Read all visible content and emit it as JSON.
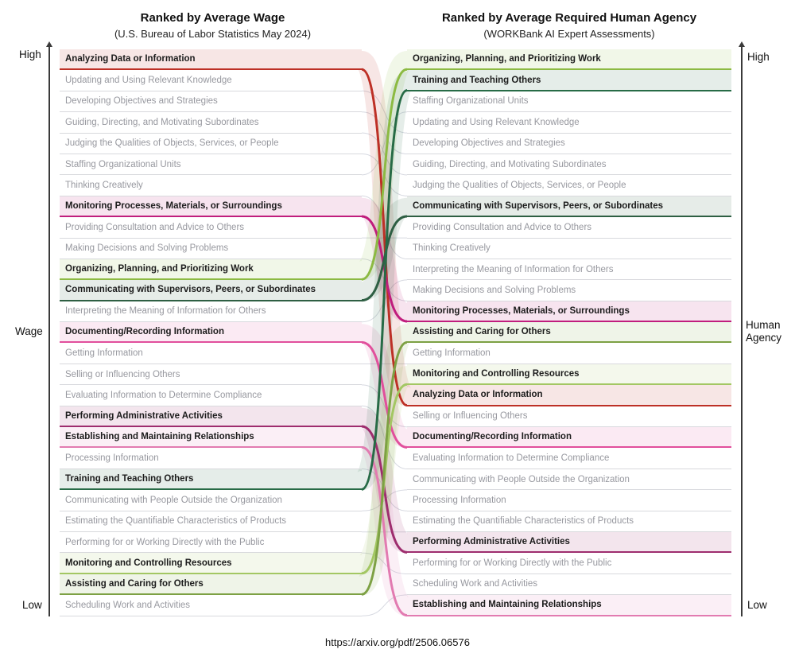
{
  "titles": {
    "left_title": "Ranked by Average Wage",
    "left_subtitle": "(U.S. Bureau of Labor Statistics May 2024)",
    "right_title": "Ranked by Average Required Human Agency",
    "right_subtitle": "(WORKBank AI Expert Assessments)"
  },
  "axes": {
    "left": {
      "top": "High",
      "middle": "Wage",
      "bottom": "Low"
    },
    "right": {
      "top": "High",
      "middle": "Human Agency",
      "bottom": "Low"
    }
  },
  "caption": "https://arxiv.org/pdf/2506.06576",
  "chart_data": {
    "type": "slope-ranking",
    "left_axis": "Wage (High to Low)",
    "right_axis": "Human Agency (High to Low)",
    "left_ranking": [
      "Analyzing Data or Information",
      "Updating and Using Relevant Knowledge",
      "Developing Objectives and Strategies",
      "Guiding, Directing, and Motivating Subordinates",
      "Judging the Qualities of Objects, Services, or People",
      "Staffing Organizational Units",
      "Thinking Creatively",
      "Monitoring Processes, Materials, or Surroundings",
      "Providing Consultation and Advice to Others",
      "Making Decisions and Solving Problems",
      "Organizing, Planning, and Prioritizing Work",
      "Communicating with Supervisors, Peers, or Subordinates",
      "Interpreting the Meaning of Information for Others",
      "Documenting/Recording Information",
      "Getting Information",
      "Selling or Influencing Others",
      "Evaluating Information to Determine Compliance",
      "Performing Administrative Activities",
      "Establishing and Maintaining Relationships",
      "Processing Information",
      "Training and Teaching Others",
      "Communicating with People Outside the Organization",
      "Estimating the Quantifiable Characteristics of Products",
      "Performing for or Working Directly with the Public",
      "Monitoring and Controlling Resources",
      "Assisting and Caring for Others",
      "Scheduling Work and Activities"
    ],
    "right_ranking": [
      "Organizing, Planning, and Prioritizing Work",
      "Training and Teaching Others",
      "Staffing Organizational Units",
      "Updating and Using Relevant Knowledge",
      "Developing Objectives and Strategies",
      "Guiding, Directing, and Motivating Subordinates",
      "Judging the Qualities of Objects, Services, or People",
      "Communicating with Supervisors, Peers, or Subordinates",
      "Providing Consultation and Advice to Others",
      "Thinking Creatively",
      "Interpreting the Meaning of Information for Others",
      "Making Decisions and Solving Problems",
      "Monitoring Processes, Materials, or Surroundings",
      "Assisting and Caring for Others",
      "Getting Information",
      "Monitoring and Controlling Resources",
      "Analyzing Data or Information",
      "Selling or Influencing Others",
      "Documenting/Recording Information",
      "Evaluating Information to Determine Compliance",
      "Communicating with People Outside the Organization",
      "Processing Information",
      "Estimating the Quantifiable Characteristics of Products",
      "Performing Administrative Activities",
      "Performing for or Working Directly with the Public",
      "Scheduling Work and Activities",
      "Establishing and Maintaining Relationships"
    ],
    "highlights": {
      "Analyzing Data or Information": "#bd3026",
      "Monitoring Processes, Materials, or Surroundings": "#c01d7d",
      "Organizing, Planning, and Prioritizing Work": "#8cba42",
      "Communicating with Supervisors, Peers, or Subordinates": "#2e5f43",
      "Documenting/Recording Information": "#e14f9c",
      "Performing Administrative Activities": "#9e2d6e",
      "Establishing and Maintaining Relationships": "#e27bb1",
      "Training and Teaching Others": "#276b46",
      "Monitoring and Controlling Resources": "#a3c763",
      "Assisting and Caring for Others": "#7da144"
    },
    "colors": {
      "gray_text": "#97989f",
      "row_line": "#d8d9dd",
      "link_gray": "#d3d5de",
      "axis": "#3a3a3a",
      "highlight_band_alpha": "0.12"
    }
  }
}
